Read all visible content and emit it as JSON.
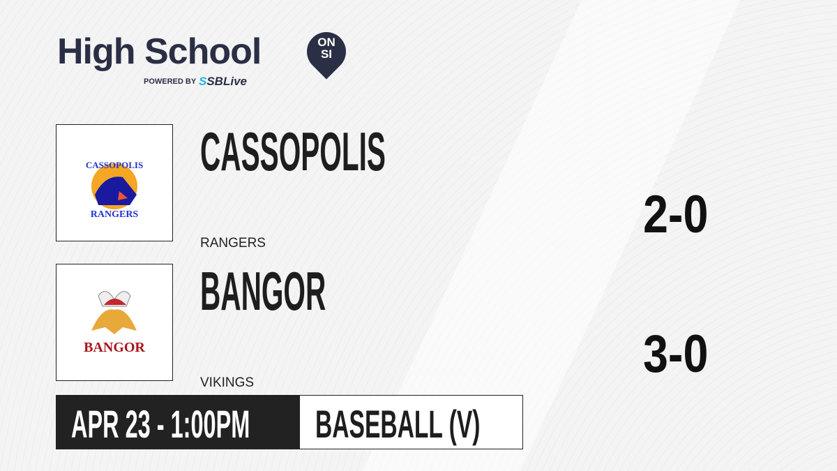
{
  "brand": {
    "title": "High School",
    "badge_top": "ON",
    "badge_bottom": "SI",
    "powered_by": "POWERED BY",
    "partner_prefix": "S",
    "partner": "SBLive"
  },
  "teams": [
    {
      "name": "CASSOPOLIS",
      "mascot": "RANGERS",
      "record": "2-0",
      "logo_text_top": "CASSOPOLIS",
      "logo_text_bottom": "RANGERS"
    },
    {
      "name": "BANGOR",
      "mascot": "VIKINGS",
      "record": "3-0",
      "logo_text": "BANGOR"
    }
  ],
  "game": {
    "datetime": "APR 23 - 1:00PM",
    "sport": "BASEBALL (V)"
  },
  "colors": {
    "brand": "#2b2f45",
    "accent": "#1fb6e8",
    "bar": "#222222"
  }
}
